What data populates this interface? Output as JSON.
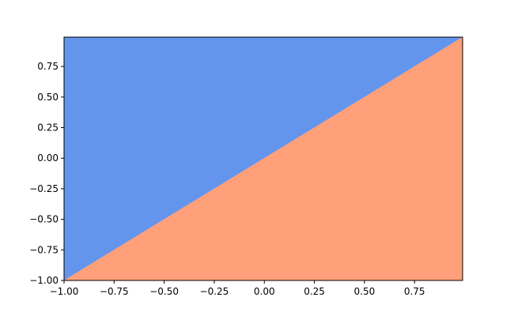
{
  "chart_data": {
    "type": "region",
    "series": [
      {
        "color": "#6495ed",
        "x": [
          -1,
          -1,
          0.99
        ],
        "y": [
          -1,
          0.99,
          0.99
        ]
      },
      {
        "color": "#ffa07a",
        "x": [
          -1,
          0.99,
          0.99
        ],
        "y": [
          -1,
          0.99,
          -1
        ]
      }
    ],
    "xlim": [
      -1,
      0.99
    ],
    "ylim": [
      -1,
      0.99
    ],
    "xticks": [
      {
        "value": -1,
        "label": "−1.00"
      },
      {
        "value": -0.75,
        "label": "−0.75"
      },
      {
        "value": -0.5,
        "label": "−0.50"
      },
      {
        "value": -0.25,
        "label": "−0.25"
      },
      {
        "value": 0,
        "label": "0.00"
      },
      {
        "value": 0.25,
        "label": "0.25"
      },
      {
        "value": 0.5,
        "label": "0.50"
      },
      {
        "value": 0.75,
        "label": "0.75"
      }
    ],
    "yticks": [
      {
        "value": -1,
        "label": "−1.00"
      },
      {
        "value": -0.75,
        "label": "−0.75"
      },
      {
        "value": -0.5,
        "label": "−0.50"
      },
      {
        "value": -0.25,
        "label": "−0.25"
      },
      {
        "value": 0,
        "label": "0.00"
      },
      {
        "value": 0.25,
        "label": "0.25"
      },
      {
        "value": 0.5,
        "label": "0.50"
      },
      {
        "value": 0.75,
        "label": "0.75"
      }
    ],
    "grid": false
  }
}
